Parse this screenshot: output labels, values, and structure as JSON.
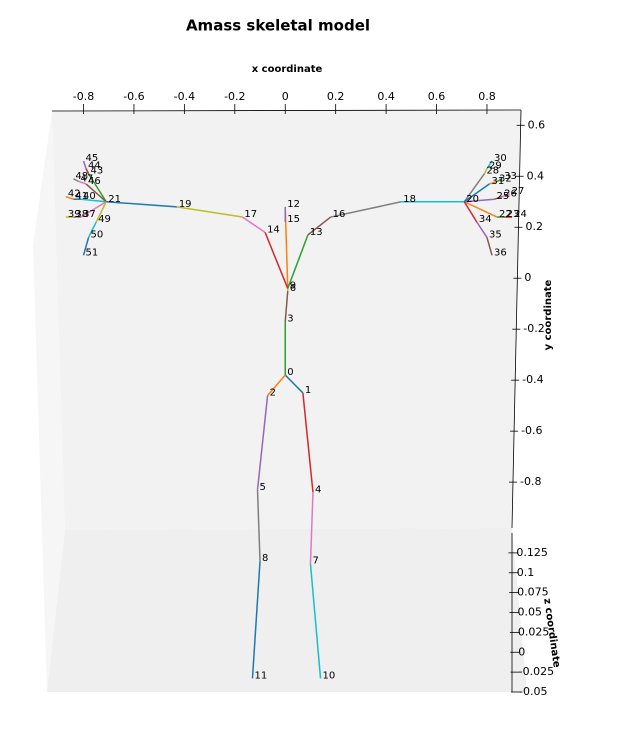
{
  "chart_data": {
    "type": "skeleton3d",
    "title": "Amass skeletal model",
    "x_label": "x coordinate",
    "y_label": "y coordinate",
    "z_label": "z coordinate",
    "xlim": [
      -0.925,
      0.935
    ],
    "ylim": [
      -0.98,
      0.66
    ],
    "zlim": [
      -0.05,
      0.15
    ],
    "xticks": [
      -0.8,
      -0.6,
      -0.4,
      -0.2,
      0.0,
      0.2,
      0.4,
      0.6,
      0.8
    ],
    "yticks": [
      0.6,
      0.4,
      0.2,
      0.0,
      -0.2,
      -0.4,
      -0.6,
      -0.8
    ],
    "zticks": [
      0.125,
      0.1,
      0.075,
      0.05,
      0.025,
      0.0,
      -0.025,
      -0.05
    ],
    "colors": [
      "#1f77b4",
      "#ff7f0e",
      "#2ca02c",
      "#d62728",
      "#9467bd",
      "#8c564b",
      "#e377c2",
      "#7f7f7f",
      "#bcbd22",
      "#17becf"
    ],
    "joints": {
      "labels": [
        "0",
        "1",
        "2",
        "3",
        "4",
        "5",
        "6",
        "7",
        "8",
        "9",
        "10",
        "11",
        "12",
        "13",
        "14",
        "15",
        "16",
        "17",
        "18",
        "19",
        "20",
        "21",
        "22",
        "23",
        "24",
        "25",
        "26",
        "27",
        "28",
        "29",
        "30",
        "31",
        "32",
        "33",
        "34",
        "35",
        "36",
        "37",
        "38",
        "39",
        "40",
        "41",
        "42",
        "43",
        "44",
        "45",
        "46",
        "47",
        "48",
        "49",
        "50",
        "51"
      ],
      "parents": [
        null,
        0,
        0,
        0,
        1,
        2,
        3,
        4,
        5,
        6,
        7,
        8,
        9,
        9,
        9,
        12,
        13,
        14,
        16,
        17,
        18,
        19,
        20,
        22,
        23,
        20,
        25,
        26,
        20,
        28,
        29,
        20,
        31,
        32,
        20,
        34,
        35,
        21,
        37,
        38,
        21,
        40,
        41,
        21,
        43,
        44,
        21,
        46,
        47,
        21,
        49,
        50
      ],
      "x": [
        0.0,
        0.07,
        -0.07,
        0.0,
        0.11,
        -0.11,
        0.01,
        0.1,
        -0.1,
        0.01,
        0.14,
        -0.13,
        0.0,
        0.09,
        -0.08,
        0.0,
        0.18,
        -0.17,
        0.46,
        -0.43,
        0.71,
        -0.71,
        0.84,
        0.87,
        0.9,
        0.83,
        0.86,
        0.89,
        0.79,
        0.8,
        0.82,
        0.81,
        0.84,
        0.86,
        0.76,
        0.8,
        0.82,
        -0.81,
        -0.84,
        -0.87,
        -0.81,
        -0.84,
        -0.87,
        -0.78,
        -0.79,
        -0.8,
        -0.79,
        -0.82,
        -0.84,
        -0.75,
        -0.78,
        -0.8
      ],
      "y": [
        -0.38,
        -0.45,
        -0.46,
        -0.17,
        -0.84,
        -0.83,
        -0.05,
        -1.12,
        -1.11,
        -0.04,
        -1.57,
        -1.57,
        0.28,
        0.17,
        0.18,
        0.22,
        0.24,
        0.24,
        0.3,
        0.28,
        0.3,
        0.3,
        0.24,
        0.24,
        0.24,
        0.31,
        0.32,
        0.33,
        0.41,
        0.43,
        0.46,
        0.37,
        0.38,
        0.39,
        0.22,
        0.16,
        0.09,
        0.24,
        0.24,
        0.24,
        0.31,
        0.31,
        0.32,
        0.41,
        0.43,
        0.46,
        0.37,
        0.38,
        0.39,
        0.22,
        0.16,
        0.09
      ]
    }
  }
}
